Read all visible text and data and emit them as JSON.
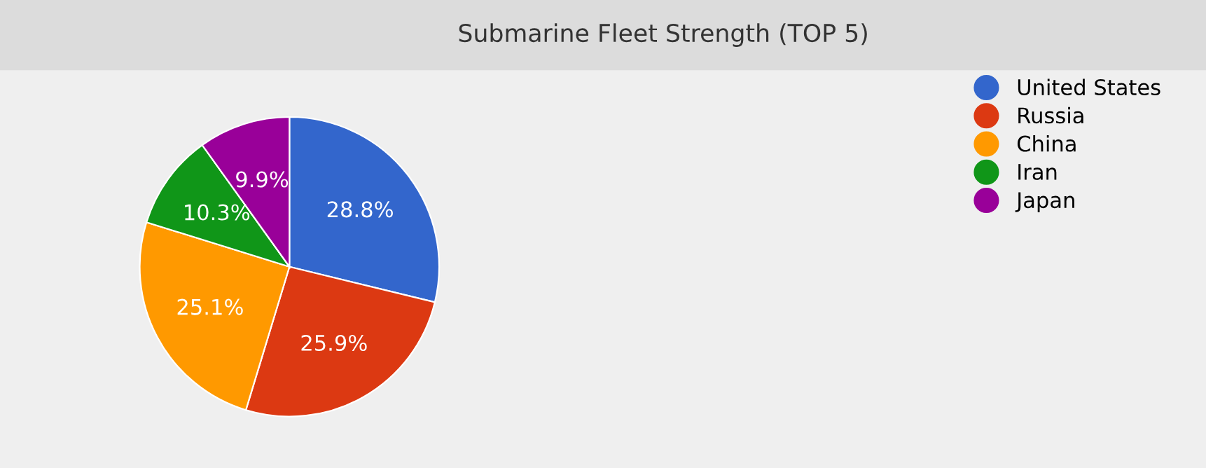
{
  "chart_data": {
    "type": "pie",
    "title": "Submarine Fleet Strength (TOP 5)",
    "categories": [
      "United States",
      "Russia",
      "China",
      "Iran",
      "Japan"
    ],
    "values": [
      28.8,
      25.9,
      25.1,
      10.3,
      9.9
    ],
    "value_labels": [
      "28.8%",
      "25.9%",
      "25.1%",
      "10.3%",
      "9.9%"
    ],
    "colors": [
      "#3366cc",
      "#dc3912",
      "#ff9900",
      "#109618",
      "#990099"
    ],
    "legend": "top right"
  }
}
